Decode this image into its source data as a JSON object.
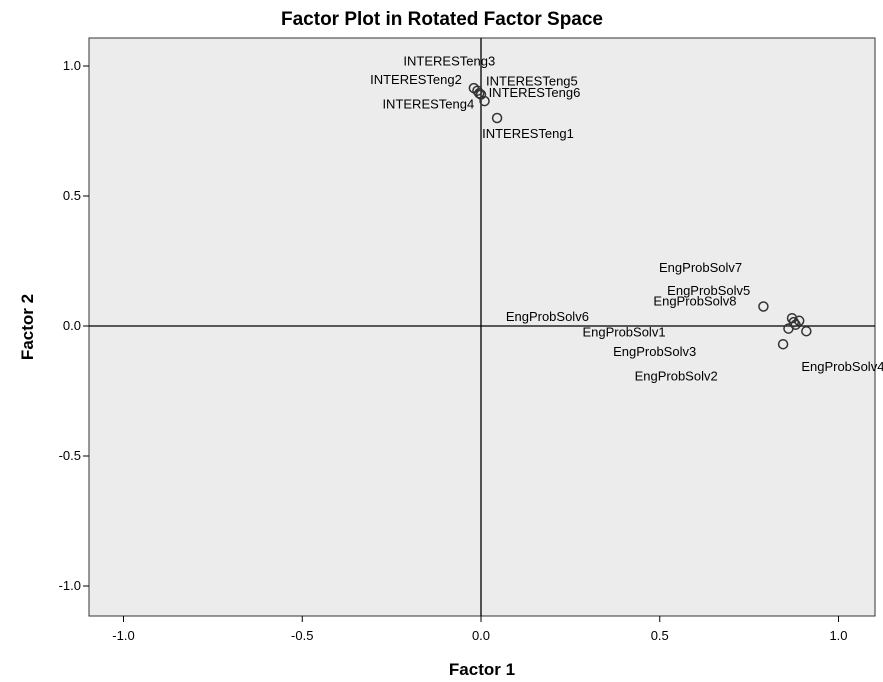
{
  "chart_data": {
    "type": "scatter",
    "title": "Factor Plot in Rotated Factor Space",
    "xlabel": "Factor 1",
    "ylabel": "Factor 2",
    "xlim": [
      -1.1,
      1.1
    ],
    "ylim": [
      -1.1,
      1.1
    ],
    "xticks": [
      -1.0,
      -0.5,
      0.0,
      0.5,
      1.0
    ],
    "xtick_labels": [
      "-1.0",
      "-0.5",
      "0.0",
      "0.5",
      "1.0"
    ],
    "yticks": [
      1.0,
      0.5,
      0.0,
      -0.5,
      -1.0
    ],
    "ytick_labels": [
      "1.0",
      "0.5",
      "0.0",
      "-0.5",
      "-1.0"
    ],
    "reference_lines": {
      "x": 0,
      "y": 0
    },
    "grid": false,
    "colors": {
      "plot_background": "#ececec",
      "marker": "#333333",
      "axis": "#000000"
    },
    "points": [
      {
        "label": "INTERESTeng3",
        "x": -0.01,
        "y": 0.905
      },
      {
        "label": "INTERESTeng2",
        "x": -0.02,
        "y": 0.915
      },
      {
        "label": "INTERESTeng5",
        "x": 0.0,
        "y": 0.89
      },
      {
        "label": "INTERESTeng4",
        "x": -0.005,
        "y": 0.895
      },
      {
        "label": "INTERESTeng6",
        "x": 0.01,
        "y": 0.865
      },
      {
        "label": "INTERESTeng1",
        "x": 0.045,
        "y": 0.8
      },
      {
        "label": "EngProbSolv7",
        "x": 0.87,
        "y": 0.03
      },
      {
        "label": "EngProbSolv5",
        "x": 0.89,
        "y": 0.02
      },
      {
        "label": "EngProbSolv8",
        "x": 0.79,
        "y": 0.075
      },
      {
        "label": "EngProbSolv6",
        "x": 0.875,
        "y": 0.015
      },
      {
        "label": "EngProbSolv1",
        "x": 0.86,
        "y": -0.01
      },
      {
        "label": "EngProbSolv3",
        "x": 0.845,
        "y": -0.07
      },
      {
        "label": "EngProbSolv4",
        "x": 0.91,
        "y": -0.02
      },
      {
        "label": "EngProbSolv2",
        "x": 0.88,
        "y": 0.005
      }
    ]
  }
}
